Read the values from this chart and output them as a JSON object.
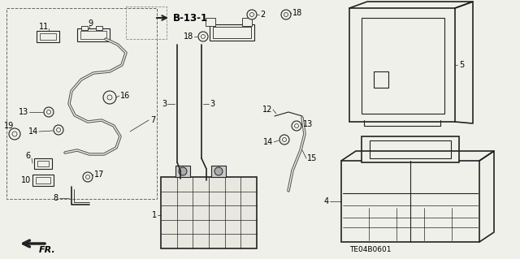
{
  "bg_color": "#f0f0eb",
  "line_color": "#222222",
  "diagram_code": "TE04B0601",
  "figsize": [
    6.4,
    3.19
  ],
  "dpi": 100
}
